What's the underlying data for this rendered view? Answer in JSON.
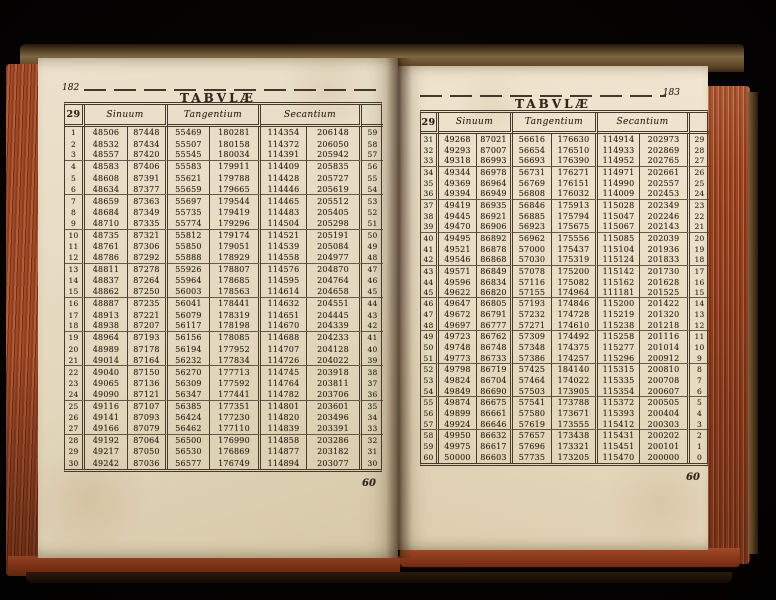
{
  "photo": {
    "subject": "open-antique-book-of-trigonometric-tables",
    "colors": {
      "background": "#050302",
      "page": "#e8ddc4",
      "ink": "#2f261c",
      "fore_edge_red": "#a34b2c",
      "cover_brown": "#5d4628"
    }
  },
  "book": {
    "pages": [
      {
        "side": "left",
        "page_number": "182",
        "title": "TABVLÆ",
        "degree_label": "29",
        "column_headers": [
          "Sinuum",
          "Tangentium",
          "Secantium"
        ],
        "catchword": "60",
        "rows": [
          [
            "1",
            "48506",
            "87448",
            "55469",
            "180281",
            "114354",
            "206148",
            "59"
          ],
          [
            "2",
            "48532",
            "87434",
            "55507",
            "180158",
            "114372",
            "206050",
            "58"
          ],
          [
            "3",
            "48557",
            "87420",
            "55545",
            "180034",
            "114391",
            "205942",
            "57"
          ],
          [
            "4",
            "48583",
            "87406",
            "55583",
            "179911",
            "114409",
            "205835",
            "56"
          ],
          [
            "5",
            "48608",
            "87391",
            "55621",
            "179788",
            "114428",
            "205727",
            "55"
          ],
          [
            "6",
            "48634",
            "87377",
            "55659",
            "179665",
            "114446",
            "205619",
            "54"
          ],
          [
            "7",
            "48659",
            "87363",
            "55697",
            "179544",
            "114465",
            "205512",
            "53"
          ],
          [
            "8",
            "48684",
            "87349",
            "55735",
            "179419",
            "114483",
            "205405",
            "52"
          ],
          [
            "9",
            "48710",
            "87335",
            "55774",
            "179296",
            "114504",
            "205298",
            "51"
          ],
          [
            "10",
            "48735",
            "87321",
            "55812",
            "179174",
            "114521",
            "205191",
            "50"
          ],
          [
            "11",
            "48761",
            "87306",
            "55850",
            "179051",
            "114539",
            "205084",
            "49"
          ],
          [
            "12",
            "48786",
            "87292",
            "55888",
            "178929",
            "114558",
            "204977",
            "48"
          ],
          [
            "13",
            "48811",
            "87278",
            "55926",
            "178807",
            "114576",
            "204870",
            "47"
          ],
          [
            "14",
            "48837",
            "87264",
            "55964",
            "178685",
            "114595",
            "204764",
            "46"
          ],
          [
            "15",
            "48862",
            "87250",
            "56003",
            "178563",
            "114614",
            "204658",
            "45"
          ],
          [
            "16",
            "48887",
            "87235",
            "56041",
            "178441",
            "114632",
            "204551",
            "44"
          ],
          [
            "17",
            "48913",
            "87221",
            "56079",
            "178319",
            "114651",
            "204445",
            "43"
          ],
          [
            "18",
            "48938",
            "87207",
            "56117",
            "178198",
            "114670",
            "204339",
            "42"
          ],
          [
            "19",
            "48964",
            "87193",
            "56156",
            "178085",
            "114688",
            "204233",
            "41"
          ],
          [
            "20",
            "48989",
            "87178",
            "56194",
            "177952",
            "114707",
            "204128",
            "40"
          ],
          [
            "21",
            "49014",
            "87164",
            "56232",
            "177834",
            "114726",
            "204022",
            "39"
          ],
          [
            "22",
            "49040",
            "87150",
            "56270",
            "177713",
            "114745",
            "203918",
            "38"
          ],
          [
            "23",
            "49065",
            "87136",
            "56309",
            "177592",
            "114764",
            "203811",
            "37"
          ],
          [
            "24",
            "49090",
            "87121",
            "56347",
            "177441",
            "114782",
            "203706",
            "36"
          ],
          [
            "25",
            "49116",
            "87107",
            "56385",
            "177351",
            "114801",
            "203601",
            "35"
          ],
          [
            "26",
            "49141",
            "87093",
            "56424",
            "177230",
            "114820",
            "203496",
            "34"
          ],
          [
            "27",
            "49166",
            "87079",
            "56462",
            "177110",
            "114839",
            "203391",
            "33"
          ],
          [
            "28",
            "49192",
            "87064",
            "56500",
            "176990",
            "114858",
            "203286",
            "32"
          ],
          [
            "29",
            "49217",
            "87050",
            "56530",
            "176869",
            "114877",
            "203182",
            "31"
          ],
          [
            "30",
            "49242",
            "87036",
            "56577",
            "176749",
            "114894",
            "203077",
            "30"
          ]
        ]
      },
      {
        "side": "right",
        "page_number": "183",
        "title": "TABVLÆ",
        "degree_label": "29",
        "column_headers": [
          "Sinuum",
          "Tangentium",
          "Secantium"
        ],
        "catchword": "60",
        "rows": [
          [
            "31",
            "49268",
            "87021",
            "56616",
            "176630",
            "114914",
            "202973",
            "29"
          ],
          [
            "32",
            "49293",
            "87007",
            "56654",
            "176510",
            "114933",
            "202869",
            "28"
          ],
          [
            "33",
            "49318",
            "86993",
            "56693",
            "176390",
            "114952",
            "202765",
            "27"
          ],
          [
            "34",
            "49344",
            "86978",
            "56731",
            "176271",
            "114971",
            "202661",
            "26"
          ],
          [
            "35",
            "49369",
            "86964",
            "56769",
            "176151",
            "114990",
            "202557",
            "25"
          ],
          [
            "36",
            "49394",
            "86949",
            "56808",
            "176032",
            "114009",
            "202453",
            "24"
          ],
          [
            "37",
            "49419",
            "86935",
            "56846",
            "175913",
            "115028",
            "202349",
            "23"
          ],
          [
            "38",
            "49445",
            "86921",
            "56885",
            "175794",
            "115047",
            "202246",
            "22"
          ],
          [
            "39",
            "49470",
            "86906",
            "56923",
            "175675",
            "115067",
            "202143",
            "21"
          ],
          [
            "40",
            "49495",
            "86892",
            "56962",
            "175556",
            "115085",
            "202039",
            "20"
          ],
          [
            "41",
            "49521",
            "86878",
            "57000",
            "175437",
            "115104",
            "201936",
            "19"
          ],
          [
            "42",
            "49546",
            "86868",
            "57030",
            "175319",
            "115124",
            "201833",
            "18"
          ],
          [
            "43",
            "49571",
            "86849",
            "57078",
            "175200",
            "115142",
            "201730",
            "17"
          ],
          [
            "44",
            "49596",
            "86834",
            "57116",
            "175082",
            "115162",
            "201628",
            "16"
          ],
          [
            "45",
            "49622",
            "86820",
            "57155",
            "174964",
            "111181",
            "201525",
            "15"
          ],
          [
            "46",
            "49647",
            "86805",
            "57193",
            "174846",
            "115200",
            "201422",
            "14"
          ],
          [
            "47",
            "49672",
            "86791",
            "57232",
            "174728",
            "115219",
            "201320",
            "13"
          ],
          [
            "48",
            "49697",
            "86777",
            "57271",
            "174610",
            "115238",
            "201218",
            "12"
          ],
          [
            "49",
            "49723",
            "86762",
            "57309",
            "174492",
            "115258",
            "201116",
            "11"
          ],
          [
            "50",
            "49748",
            "86748",
            "57348",
            "174375",
            "115277",
            "201014",
            "10"
          ],
          [
            "51",
            "49773",
            "86733",
            "57386",
            "174257",
            "115296",
            "200912",
            "9"
          ],
          [
            "52",
            "49798",
            "86719",
            "57425",
            "184140",
            "115315",
            "200810",
            "8"
          ],
          [
            "53",
            "49824",
            "86704",
            "57464",
            "174022",
            "115335",
            "200708",
            "7"
          ],
          [
            "54",
            "49849",
            "86690",
            "57503",
            "173905",
            "115354",
            "200607",
            "6"
          ],
          [
            "55",
            "49874",
            "86675",
            "57541",
            "173788",
            "115372",
            "200505",
            "5"
          ],
          [
            "56",
            "49899",
            "86661",
            "57580",
            "173671",
            "115393",
            "200404",
            "4"
          ],
          [
            "57",
            "49924",
            "86646",
            "57619",
            "173555",
            "115412",
            "200303",
            "3"
          ],
          [
            "58",
            "49950",
            "86632",
            "57657",
            "173438",
            "115431",
            "200202",
            "2"
          ],
          [
            "59",
            "49975",
            "86617",
            "57696",
            "173321",
            "115451",
            "200101",
            "1"
          ],
          [
            "60",
            "50000",
            "86603",
            "57735",
            "173205",
            "115470",
            "200000",
            "0"
          ]
        ]
      }
    ]
  }
}
